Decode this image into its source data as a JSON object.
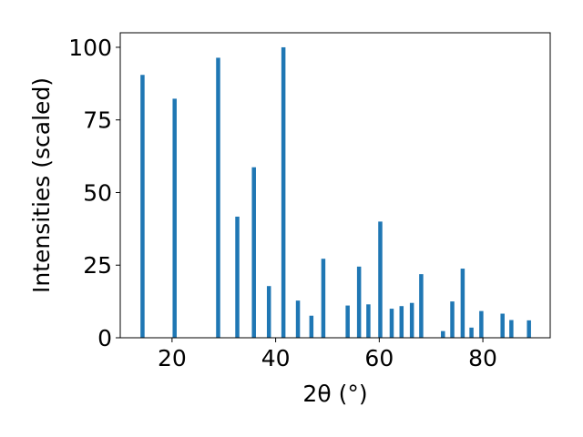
{
  "chart_data": {
    "type": "bar",
    "title": "",
    "xlabel": "2θ (°)",
    "ylabel": "Intensities (scaled)",
    "xlim": [
      10,
      93
    ],
    "ylim": [
      0,
      105
    ],
    "grid": false,
    "bar_color": "#1f77b4",
    "xticks": [
      20,
      40,
      60,
      80
    ],
    "yticks": [
      0,
      25,
      50,
      75,
      100
    ],
    "series": [
      {
        "x": [
          14.3,
          20.5,
          28.9,
          32.6,
          35.8,
          38.7,
          41.5,
          44.3,
          46.9,
          49.2,
          53.9,
          56.1,
          57.9,
          60.2,
          62.4,
          64.3,
          66.3,
          68.1,
          72.3,
          74.1,
          76.1,
          77.8,
          79.7,
          83.8,
          85.5,
          88.9
        ],
        "y": [
          90.5,
          82.3,
          96.4,
          41.7,
          58.7,
          17.8,
          100.0,
          12.8,
          7.6,
          27.2,
          11.1,
          24.5,
          11.5,
          40.0,
          10.0,
          10.9,
          12.0,
          21.9,
          2.3,
          12.5,
          23.8,
          3.5,
          9.2,
          8.3,
          6.1,
          6.0
        ]
      }
    ]
  }
}
